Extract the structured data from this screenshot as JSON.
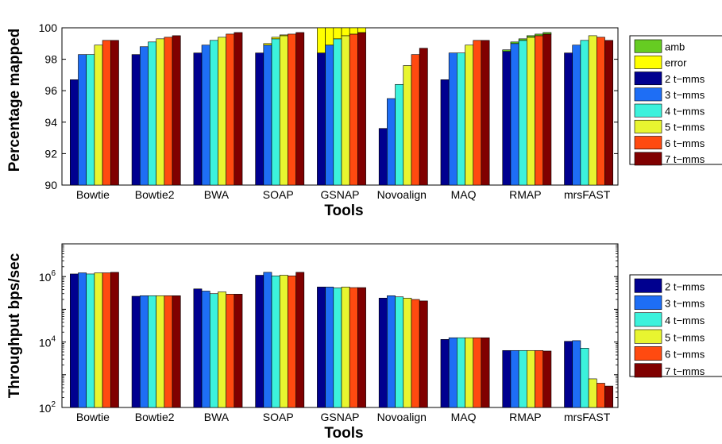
{
  "colors": {
    "2 t-mms": "#00008f",
    "3 t-mms": "#1e6ef5",
    "4 t-mms": "#3cf2dc",
    "5 t-mms": "#e8f530",
    "6 t-mms": "#ff4a10",
    "7 t-mms": "#800000",
    "amb": "#66cc22",
    "error": "#ffff00"
  },
  "chart_data": [
    {
      "type": "bar",
      "subtype": "grouped-stacked",
      "xlabel": "Tools",
      "ylabel": "Percentage mapped",
      "ylim": [
        90,
        100
      ],
      "yticks": [
        "90",
        "92",
        "94",
        "96",
        "98",
        "100"
      ],
      "categories": [
        "Bowtie",
        "Bowtie2",
        "BWA",
        "SOAP",
        "GSNAP",
        "Novoalign",
        "MAQ",
        "RMAP",
        "mrsFAST"
      ],
      "legend": [
        "amb",
        "error",
        "2 t−mms",
        "3 t−mms",
        "4 t−mms",
        "5 t−mms",
        "6 t−mms",
        "7 t−mms"
      ],
      "legend_position": "outside-right",
      "series": [
        {
          "name": "2 t−mms",
          "key": "2 t-mms",
          "values": [
            96.7,
            98.3,
            98.4,
            98.4,
            98.4,
            93.6,
            96.7,
            98.5,
            98.4
          ],
          "error": [
            0,
            0,
            0,
            0,
            1.7,
            0,
            0,
            0,
            0
          ],
          "amb": [
            0,
            0,
            0,
            0,
            0,
            0,
            0,
            0.1,
            0
          ]
        },
        {
          "name": "3 t−mms",
          "key": "3 t-mms",
          "values": [
            98.3,
            98.8,
            98.9,
            98.9,
            98.9,
            95.5,
            98.4,
            99.0,
            98.9
          ],
          "error": [
            0,
            0,
            0,
            0.1,
            1.2,
            0,
            0,
            0,
            0
          ],
          "amb": [
            0,
            0,
            0,
            0,
            0,
            0,
            0,
            0.1,
            0
          ]
        },
        {
          "name": "4 t−mms",
          "key": "4 t-mms",
          "values": [
            98.3,
            99.1,
            99.2,
            99.3,
            99.3,
            96.4,
            98.4,
            99.2,
            99.2
          ],
          "error": [
            0,
            0,
            0,
            0.1,
            1.0,
            0,
            0,
            0,
            0
          ],
          "amb": [
            0,
            0,
            0,
            0,
            0,
            0,
            0,
            0.1,
            0
          ]
        },
        {
          "name": "5 t−mms",
          "key": "5 t-mms",
          "values": [
            98.9,
            99.3,
            99.4,
            99.5,
            99.5,
            97.6,
            98.9,
            99.4,
            99.5
          ],
          "error": [
            0,
            0,
            0,
            0.05,
            0.8,
            0,
            0,
            0,
            0
          ],
          "amb": [
            0,
            0,
            0,
            0,
            0,
            0,
            0,
            0.1,
            0
          ]
        },
        {
          "name": "6 t−mms",
          "key": "6 t-mms",
          "values": [
            99.2,
            99.4,
            99.6,
            99.6,
            99.6,
            98.3,
            99.2,
            99.5,
            99.4
          ],
          "error": [
            0,
            0,
            0,
            0,
            0.6,
            0,
            0,
            0,
            0
          ],
          "amb": [
            0,
            0,
            0,
            0,
            0,
            0,
            0,
            0.1,
            0
          ]
        },
        {
          "name": "7 t−mms",
          "key": "7 t-mms",
          "values": [
            99.2,
            99.5,
            99.7,
            99.7,
            99.7,
            98.7,
            99.2,
            99.6,
            99.2
          ],
          "error": [
            0,
            0,
            0,
            0,
            0.5,
            0,
            0,
            0,
            0
          ],
          "amb": [
            0,
            0,
            0,
            0,
            0,
            0,
            0,
            0.1,
            0
          ]
        }
      ]
    },
    {
      "type": "bar",
      "subtype": "grouped",
      "yscale": "log",
      "xlabel": "Tools",
      "ylabel": "Throughput bps/sec",
      "ylim": [
        100,
        10000000
      ],
      "yticks": [
        {
          "value": 100,
          "base": "10",
          "exp": "2"
        },
        {
          "value": 10000,
          "base": "10",
          "exp": "4"
        },
        {
          "value": 1000000,
          "base": "10",
          "exp": "6"
        }
      ],
      "categories": [
        "Bowtie",
        "Bowtie2",
        "BWA",
        "SOAP",
        "GSNAP",
        "Novoalign",
        "MAQ",
        "RMAP",
        "mrsFAST"
      ],
      "legend": [
        "2 t−mms",
        "3 t−mms",
        "4 t−mms",
        "5 t−mms",
        "6 t−mms",
        "7 t−mms"
      ],
      "legend_position": "outside-right",
      "series": [
        {
          "name": "2 t−mms",
          "key": "2 t-mms",
          "values": [
            1200000,
            250000,
            420000,
            1100000,
            480000,
            220000,
            12000,
            5500,
            10500
          ]
        },
        {
          "name": "3 t−mms",
          "key": "3 t-mms",
          "values": [
            1300000,
            260000,
            360000,
            1350000,
            480000,
            260000,
            13500,
            5500,
            11000
          ]
        },
        {
          "name": "4 t−mms",
          "key": "4 t-mms",
          "values": [
            1200000,
            260000,
            300000,
            1050000,
            450000,
            240000,
            13500,
            5500,
            6500
          ]
        },
        {
          "name": "5 t−mms",
          "key": "5 t-mms",
          "values": [
            1300000,
            260000,
            340000,
            1100000,
            480000,
            220000,
            13500,
            5500,
            750
          ]
        },
        {
          "name": "6 t−mms",
          "key": "6 t-mms",
          "values": [
            1300000,
            260000,
            290000,
            1050000,
            460000,
            200000,
            13500,
            5500,
            550
          ]
        },
        {
          "name": "7 t−mms",
          "key": "7 t-mms",
          "values": [
            1350000,
            260000,
            290000,
            1350000,
            460000,
            180000,
            13500,
            5300,
            450
          ]
        }
      ]
    }
  ]
}
